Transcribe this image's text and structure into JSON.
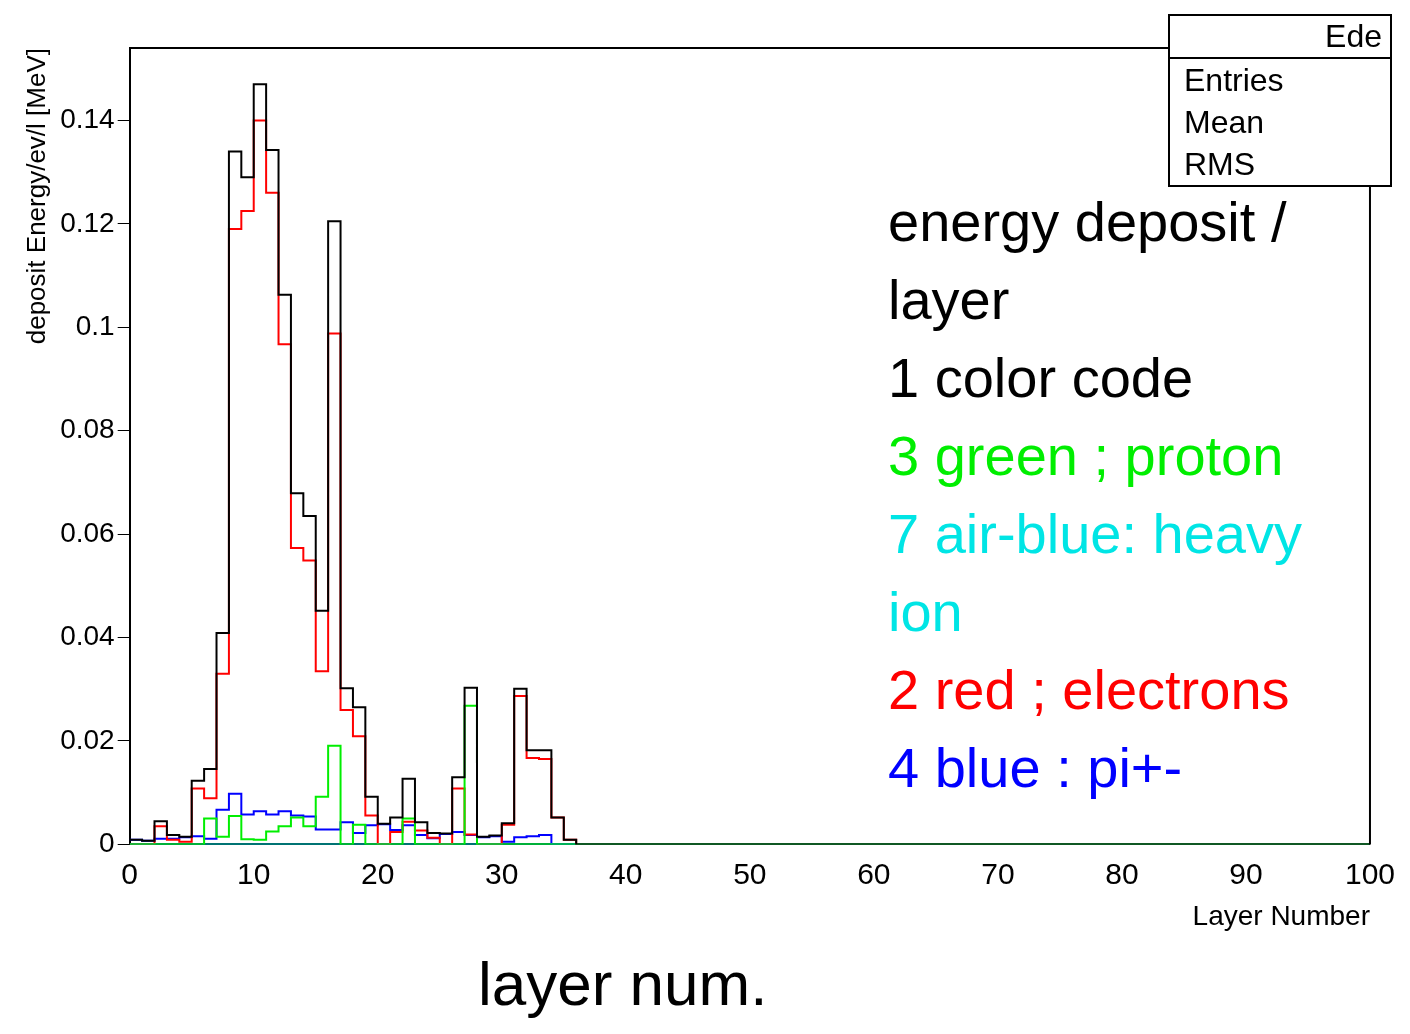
{
  "chart_data": {
    "type": "histogram",
    "xlabel": "Layer Number",
    "ylabel": "deposit Energy/ev/l [MeV]",
    "legend_title": "energy deposit / layer",
    "legend": "right",
    "grid": false,
    "annotations": [
      "Ede",
      "Entries",
      "Mean",
      "RMS",
      "layer num."
    ],
    "bins": [
      0,
      1,
      2,
      3,
      4,
      5,
      6,
      7,
      8,
      9,
      10,
      11,
      12,
      13,
      14,
      15,
      16,
      17,
      18,
      19,
      20,
      21,
      22,
      23,
      24,
      25,
      26,
      27,
      28,
      29,
      30,
      31,
      32,
      33,
      34,
      35,
      36,
      37,
      38,
      39,
      40,
      41,
      42,
      43,
      44,
      45,
      46,
      47,
      48,
      49,
      50,
      51,
      52,
      53,
      54,
      55,
      56,
      57,
      58,
      59,
      60,
      61,
      62,
      63,
      64,
      65,
      66,
      67,
      68,
      69,
      70,
      71,
      72,
      73,
      74,
      75,
      76,
      77,
      78,
      79,
      80,
      81,
      82,
      83,
      84,
      85,
      86,
      87,
      88,
      89,
      90,
      91,
      92,
      93,
      94,
      95,
      96,
      97,
      98,
      99,
      100
    ],
    "xlim": [
      0,
      100
    ],
    "xticks": [
      0,
      10,
      20,
      30,
      40,
      50,
      60,
      70,
      80,
      90,
      100
    ],
    "ylim": [
      0,
      0.154
    ],
    "yticks": [
      0,
      0.02,
      0.04,
      0.06,
      0.08,
      0.1,
      0.12,
      0.14
    ],
    "series": [
      {
        "name": "1 color code",
        "color": "#000000",
        "values": [
          0.0009,
          0.0007,
          0.0045,
          0.0018,
          0.0015,
          0.0123,
          0.0146,
          0.0409,
          0.134,
          0.129,
          0.147,
          0.1343,
          0.1063,
          0.0679,
          0.0635,
          0.0452,
          0.1205,
          0.0302,
          0.0265,
          0.0092,
          0.004,
          0.0052,
          0.0127,
          0.0043,
          0.0022,
          0.0021,
          0.013,
          0.0303,
          0.0015,
          0.0017,
          0.0041,
          0.0301,
          0.0182,
          0.0182,
          0.0052,
          0.0009,
          0,
          0,
          0,
          0,
          0,
          0,
          0,
          0,
          0,
          0,
          0,
          0,
          0,
          0,
          0,
          0,
          0,
          0,
          0,
          0,
          0,
          0,
          0,
          0,
          0,
          0,
          0,
          0,
          0,
          0,
          0,
          0,
          0,
          0,
          0,
          0,
          0,
          0,
          0,
          0,
          0,
          0,
          0,
          0,
          0,
          0,
          0,
          0,
          0,
          0,
          0,
          0,
          0,
          0,
          0,
          0,
          0,
          0,
          0,
          0,
          0,
          0,
          0,
          0
        ]
      },
      {
        "name": "3 green ; proton",
        "color": "#00ee00",
        "values": [
          0,
          0,
          0,
          0,
          0,
          0,
          0.005,
          0.0015,
          0.0055,
          0.001,
          0.0009,
          0.0025,
          0.0035,
          0.0052,
          0.0035,
          0.0092,
          0.0191,
          0,
          0.0038,
          0,
          0,
          0,
          0.005,
          0,
          0,
          0,
          0,
          0.0268,
          0,
          0,
          0,
          0,
          0,
          0,
          0,
          0,
          0,
          0,
          0,
          0,
          0,
          0,
          0,
          0,
          0,
          0,
          0,
          0,
          0,
          0,
          0,
          0,
          0,
          0,
          0,
          0,
          0,
          0,
          0,
          0,
          0,
          0,
          0,
          0,
          0,
          0,
          0,
          0,
          0,
          0,
          0,
          0,
          0,
          0,
          0,
          0,
          0,
          0,
          0,
          0,
          0,
          0,
          0,
          0,
          0,
          0,
          0,
          0,
          0,
          0,
          0,
          0,
          0,
          0,
          0,
          0,
          0,
          0,
          0,
          0
        ]
      },
      {
        "name": "7 air-blue: heavy ion",
        "color": "#00e5e5",
        "values": [
          0,
          0,
          0,
          0,
          0,
          0,
          0,
          0,
          0,
          0,
          0,
          0,
          0,
          0,
          0,
          0,
          0,
          0,
          0,
          0,
          0,
          0,
          0,
          0,
          0,
          0,
          0,
          0,
          0,
          0,
          0,
          0,
          0,
          0,
          0,
          0,
          0,
          0,
          0,
          0,
          0,
          0,
          0,
          0,
          0,
          0,
          0,
          0,
          0,
          0,
          0,
          0,
          0,
          0,
          0,
          0,
          0,
          0,
          0,
          0,
          0,
          0,
          0,
          0,
          0,
          0,
          0,
          0,
          0,
          0,
          0,
          0,
          0,
          0,
          0,
          0,
          0,
          0,
          0,
          0,
          0,
          0,
          0,
          0,
          0,
          0,
          0,
          0,
          0,
          0,
          0,
          0,
          0,
          0,
          0,
          0,
          0,
          0,
          0,
          0
        ]
      },
      {
        "name": "2 red ; electrons",
        "color": "#ff0000",
        "values": [
          0,
          0,
          0.0035,
          0.0009,
          0.0005,
          0.0108,
          0.0089,
          0.033,
          0.119,
          0.1225,
          0.14,
          0.126,
          0.0967,
          0.0573,
          0.0549,
          0.0335,
          0.0988,
          0.026,
          0.0209,
          0.0056,
          0,
          0.0024,
          0.0044,
          0.0027,
          0.0013,
          0,
          0.0108,
          0.0019,
          0,
          0,
          0.0038,
          0.0287,
          0.0167,
          0.0165,
          0.0052,
          0.0009,
          0,
          0,
          0,
          0,
          0,
          0,
          0,
          0,
          0,
          0,
          0,
          0,
          0,
          0,
          0,
          0,
          0,
          0,
          0,
          0,
          0,
          0,
          0,
          0,
          0,
          0,
          0,
          0,
          0,
          0,
          0,
          0,
          0,
          0,
          0,
          0,
          0,
          0,
          0,
          0,
          0,
          0,
          0,
          0,
          0,
          0,
          0,
          0,
          0,
          0,
          0,
          0,
          0,
          0,
          0,
          0,
          0,
          0,
          0,
          0,
          0,
          0,
          0,
          0
        ]
      },
      {
        "name": "4 blue : pi+-",
        "color": "#0000ff",
        "values": [
          0.0009,
          0.0007,
          0.0011,
          0.0011,
          0.0014,
          0.0016,
          0.0011,
          0.0067,
          0.0098,
          0.0058,
          0.0064,
          0.0058,
          0.0064,
          0.0056,
          0.0054,
          0.0029,
          0.0029,
          0.0043,
          0.0022,
          0.0037,
          0.0039,
          0.0028,
          0.0037,
          0.0018,
          0.0012,
          0.002,
          0.0024,
          0.0018,
          0.0014,
          0.0016,
          0.0005,
          0.0014,
          0.0016,
          0.0018,
          0,
          0,
          0,
          0,
          0,
          0,
          0,
          0,
          0,
          0,
          0,
          0,
          0,
          0,
          0,
          0,
          0,
          0,
          0,
          0,
          0,
          0,
          0,
          0,
          0,
          0,
          0,
          0,
          0,
          0,
          0,
          0,
          0,
          0,
          0,
          0,
          0,
          0,
          0,
          0,
          0,
          0,
          0,
          0,
          0,
          0,
          0,
          0,
          0,
          0,
          0,
          0,
          0,
          0,
          0,
          0,
          0,
          0,
          0,
          0,
          0,
          0,
          0,
          0,
          0,
          0
        ]
      }
    ]
  }
}
